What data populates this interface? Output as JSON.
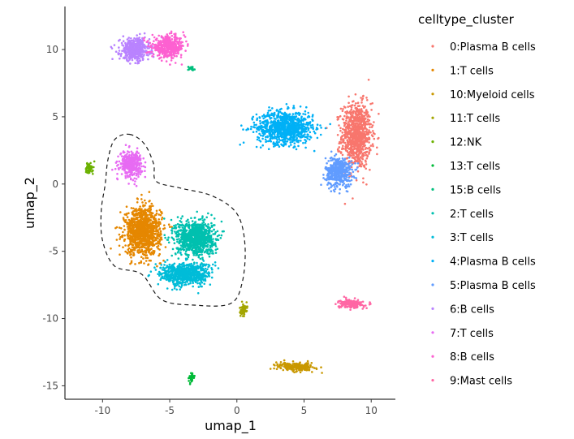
{
  "chart_data": {
    "type": "scatter",
    "xlabel": "umap_1",
    "ylabel": "umap_2",
    "xlim": [
      -12.8,
      11.8
    ],
    "ylim": [
      -16.0,
      13.2
    ],
    "x_ticks": [
      -10,
      -5,
      0,
      5,
      10
    ],
    "y_ticks": [
      -15,
      -10,
      -5,
      0,
      5,
      10
    ],
    "grid": false,
    "legend": {
      "title": "celltype_cluster",
      "placement": "right",
      "entries": [
        {
          "label": "0:Plasma B cells",
          "color": "#F8766D"
        },
        {
          "label": "1:T cells",
          "color": "#E58700"
        },
        {
          "label": "10:Myeloid cells",
          "color": "#C99800"
        },
        {
          "label": "11:T cells",
          "color": "#A3A500"
        },
        {
          "label": "12:NK",
          "color": "#6BB100"
        },
        {
          "label": "13:T cells",
          "color": "#00BA38"
        },
        {
          "label": "15:B cells",
          "color": "#00BF7D"
        },
        {
          "label": "2:T cells",
          "color": "#00C0AF"
        },
        {
          "label": "3:T cells",
          "color": "#00BCD8"
        },
        {
          "label": "4:Plasma B cells",
          "color": "#00B0F6"
        },
        {
          "label": "5:Plasma B cells",
          "color": "#619CFF"
        },
        {
          "label": "6:B cells",
          "color": "#B983FF"
        },
        {
          "label": "7:T cells",
          "color": "#E76BF3"
        },
        {
          "label": "8:B cells",
          "color": "#FD61D1"
        },
        {
          "label": "9:Mast cells",
          "color": "#FF67A4"
        }
      ]
    },
    "clusters": [
      {
        "label": "0:Plasma B cells",
        "color": "#F8766D",
        "center": [
          8.9,
          3.6
        ],
        "spread": [
          1.0,
          2.2
        ],
        "points": 900
      },
      {
        "label": "4:Plasma B cells",
        "color": "#00B0F6",
        "center": [
          3.6,
          4.2
        ],
        "spread": [
          1.9,
          1.1
        ],
        "points": 900
      },
      {
        "label": "5:Plasma B cells",
        "color": "#619CFF",
        "center": [
          7.6,
          0.9
        ],
        "spread": [
          0.9,
          1.0
        ],
        "points": 450
      },
      {
        "label": "6:B cells",
        "color": "#B983FF",
        "center": [
          -7.6,
          10.0
        ],
        "spread": [
          1.0,
          0.75
        ],
        "points": 450
      },
      {
        "label": "8:B cells",
        "color": "#FD61D1",
        "center": [
          -5.1,
          10.2
        ],
        "spread": [
          1.1,
          0.7
        ],
        "points": 450
      },
      {
        "label": "7:T cells",
        "color": "#E76BF3",
        "center": [
          -7.9,
          1.5
        ],
        "spread": [
          0.75,
          0.85
        ],
        "points": 350
      },
      {
        "label": "1:T cells",
        "color": "#E58700",
        "center": [
          -7.0,
          -3.5
        ],
        "spread": [
          1.2,
          1.6
        ],
        "points": 1100
      },
      {
        "label": "2:T cells",
        "color": "#00C0AF",
        "center": [
          -3.1,
          -4.0
        ],
        "spread": [
          1.3,
          1.2
        ],
        "points": 900
      },
      {
        "label": "3:T cells",
        "color": "#00BCD8",
        "center": [
          -3.8,
          -6.7
        ],
        "spread": [
          1.7,
          0.75
        ],
        "points": 700
      },
      {
        "label": "9:Mast cells",
        "color": "#FF67A4",
        "center": [
          8.5,
          -8.9
        ],
        "spread": [
          0.8,
          0.28
        ],
        "points": 200
      },
      {
        "label": "10:Myeloid cells",
        "color": "#C99800",
        "center": [
          4.4,
          -13.6
        ],
        "spread": [
          1.3,
          0.28
        ],
        "points": 220
      },
      {
        "label": "11:T cells",
        "color": "#A3A500",
        "center": [
          0.5,
          -9.4
        ],
        "spread": [
          0.25,
          0.4
        ],
        "points": 60
      },
      {
        "label": "12:NK",
        "color": "#6BB100",
        "center": [
          -11.0,
          1.2
        ],
        "spread": [
          0.25,
          0.45
        ],
        "points": 60
      },
      {
        "label": "13:T cells",
        "color": "#00BA38",
        "center": [
          -3.4,
          -14.4
        ],
        "spread": [
          0.18,
          0.28
        ],
        "points": 35
      },
      {
        "label": "15:B cells",
        "color": "#00BF7D",
        "center": [
          -3.4,
          8.6
        ],
        "spread": [
          0.25,
          0.15
        ],
        "points": 20
      }
    ],
    "annotation_outline": {
      "style": "dashed",
      "path": [
        [
          -8.0,
          3.7
        ],
        [
          -6.9,
          3.0
        ],
        [
          -6.2,
          1.5
        ],
        [
          -6.0,
          0.2
        ],
        [
          -4.2,
          -0.3
        ],
        [
          -1.8,
          -0.9
        ],
        [
          0.0,
          -2.2
        ],
        [
          0.6,
          -4.5
        ],
        [
          0.4,
          -7.3
        ],
        [
          -0.5,
          -8.9
        ],
        [
          -3.2,
          -9.0
        ],
        [
          -5.6,
          -8.6
        ],
        [
          -7.1,
          -6.7
        ],
        [
          -9.1,
          -6.1
        ],
        [
          -10.0,
          -4.2
        ],
        [
          -10.1,
          -2.0
        ],
        [
          -9.8,
          0.0
        ],
        [
          -9.6,
          1.8
        ],
        [
          -9.1,
          3.3
        ]
      ]
    }
  }
}
